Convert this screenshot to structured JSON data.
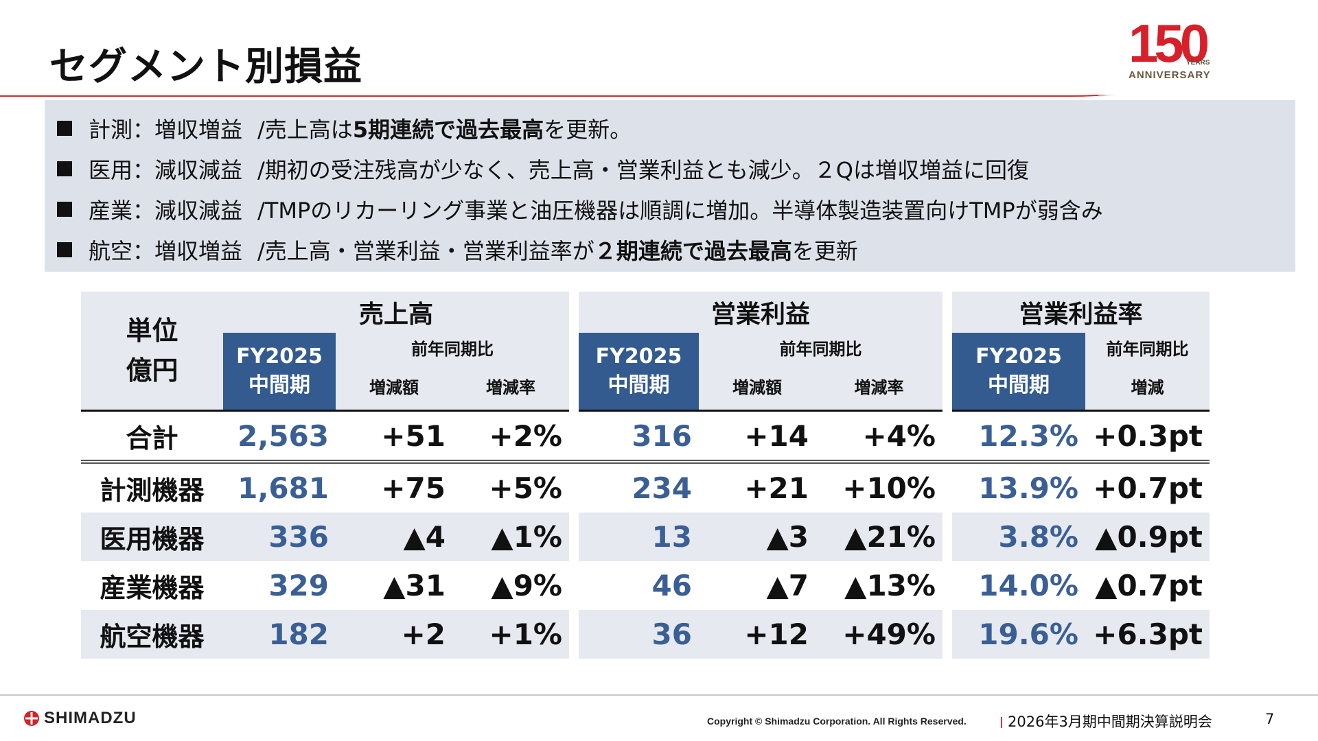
{
  "slide": {
    "title": "セグメント別損益",
    "logo": {
      "number": "150",
      "years": "YEARS",
      "anniversary": "ANNIVERSARY"
    },
    "colors": {
      "accent_red": "#d7202a",
      "header_blue": "#345b8f",
      "value_blue": "#3a5f94",
      "panel_gray": "#dde2ea"
    }
  },
  "summary": [
    {
      "segment": "計測：増収増益",
      "parts": [
        {
          "t": "/売上高は",
          "b": false
        },
        {
          "t": "5期連続で過去最高",
          "b": true
        },
        {
          "t": "を更新。",
          "b": false
        }
      ]
    },
    {
      "segment": "医用：減収減益",
      "parts": [
        {
          "t": "/期初の受注残高が少なく、売上高・営業利益とも減少。２Qは増収増益に回復",
          "b": false
        }
      ]
    },
    {
      "segment": "産業：減収減益",
      "parts": [
        {
          "t": "/TMPのリカーリング事業と油圧機器は順調に増加。半導体製造装置向けTMPが弱含み",
          "b": false
        }
      ]
    },
    {
      "segment": "航空：増収増益",
      "parts": [
        {
          "t": "/売上高・営業利益・営業利益率が",
          "b": false
        },
        {
          "t": "２期連続で過去最高",
          "b": true
        },
        {
          "t": "を更新",
          "b": false
        }
      ]
    }
  ],
  "table": {
    "unit_line1": "単位",
    "unit_line2": "億円",
    "groups": {
      "sales": "売上高",
      "op_income": "営業利益",
      "op_margin": "営業利益率"
    },
    "fy_line1": "FY2025",
    "fy_line2": "中間期",
    "yoy": "前年同期比",
    "delta_amount": "増減額",
    "delta_rate": "増減率",
    "delta": "増減",
    "total": {
      "label": "合計",
      "values": [
        "2,563",
        "+51",
        "+2%",
        "316",
        "+14",
        "+4%",
        "12.3%",
        "+0.3pt"
      ]
    },
    "rows": [
      {
        "label": "計測機器",
        "values": [
          "1,681",
          "+75",
          "+5%",
          "234",
          "+21",
          "+10%",
          "13.9%",
          "+0.7pt"
        ]
      },
      {
        "label": "医用機器",
        "values": [
          "336",
          "▲4",
          "▲1%",
          "13",
          "▲3",
          "▲21%",
          "3.8%",
          "▲0.9pt"
        ]
      },
      {
        "label": "産業機器",
        "values": [
          "329",
          "▲31",
          "▲9%",
          "46",
          "▲7",
          "▲13%",
          "14.0%",
          "▲0.7pt"
        ]
      },
      {
        "label": "航空機器",
        "values": [
          "182",
          "+2",
          "+1%",
          "36",
          "+12",
          "+49%",
          "19.6%",
          "+6.3pt"
        ]
      }
    ]
  },
  "footer": {
    "brand": "SHIMADZU",
    "copyright": "Copyright © Shimadzu Corporation. All Rights Reserved.",
    "divider": "|",
    "event": "2026年3月期中間期決算説明会",
    "page": "7"
  }
}
